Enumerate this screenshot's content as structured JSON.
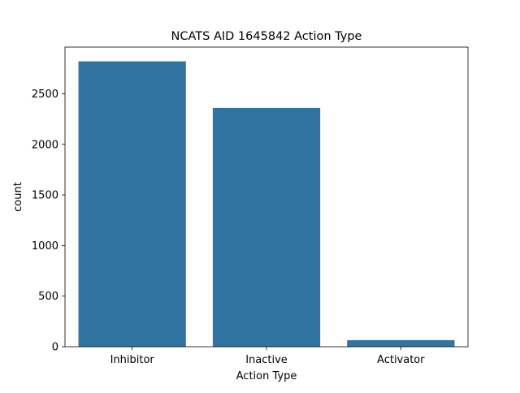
{
  "chart_data": {
    "type": "bar",
    "title": "NCATS AID 1645842 Action Type",
    "xlabel": "Action Type",
    "ylabel": "count",
    "categories": [
      "Inhibitor",
      "Inactive",
      "Activator"
    ],
    "values": [
      2820,
      2360,
      65
    ],
    "ylim": [
      0,
      2961
    ],
    "yticks": [
      0,
      500,
      1000,
      1500,
      2000,
      2500
    ],
    "grid": false,
    "bar_color": "#3274a1"
  }
}
